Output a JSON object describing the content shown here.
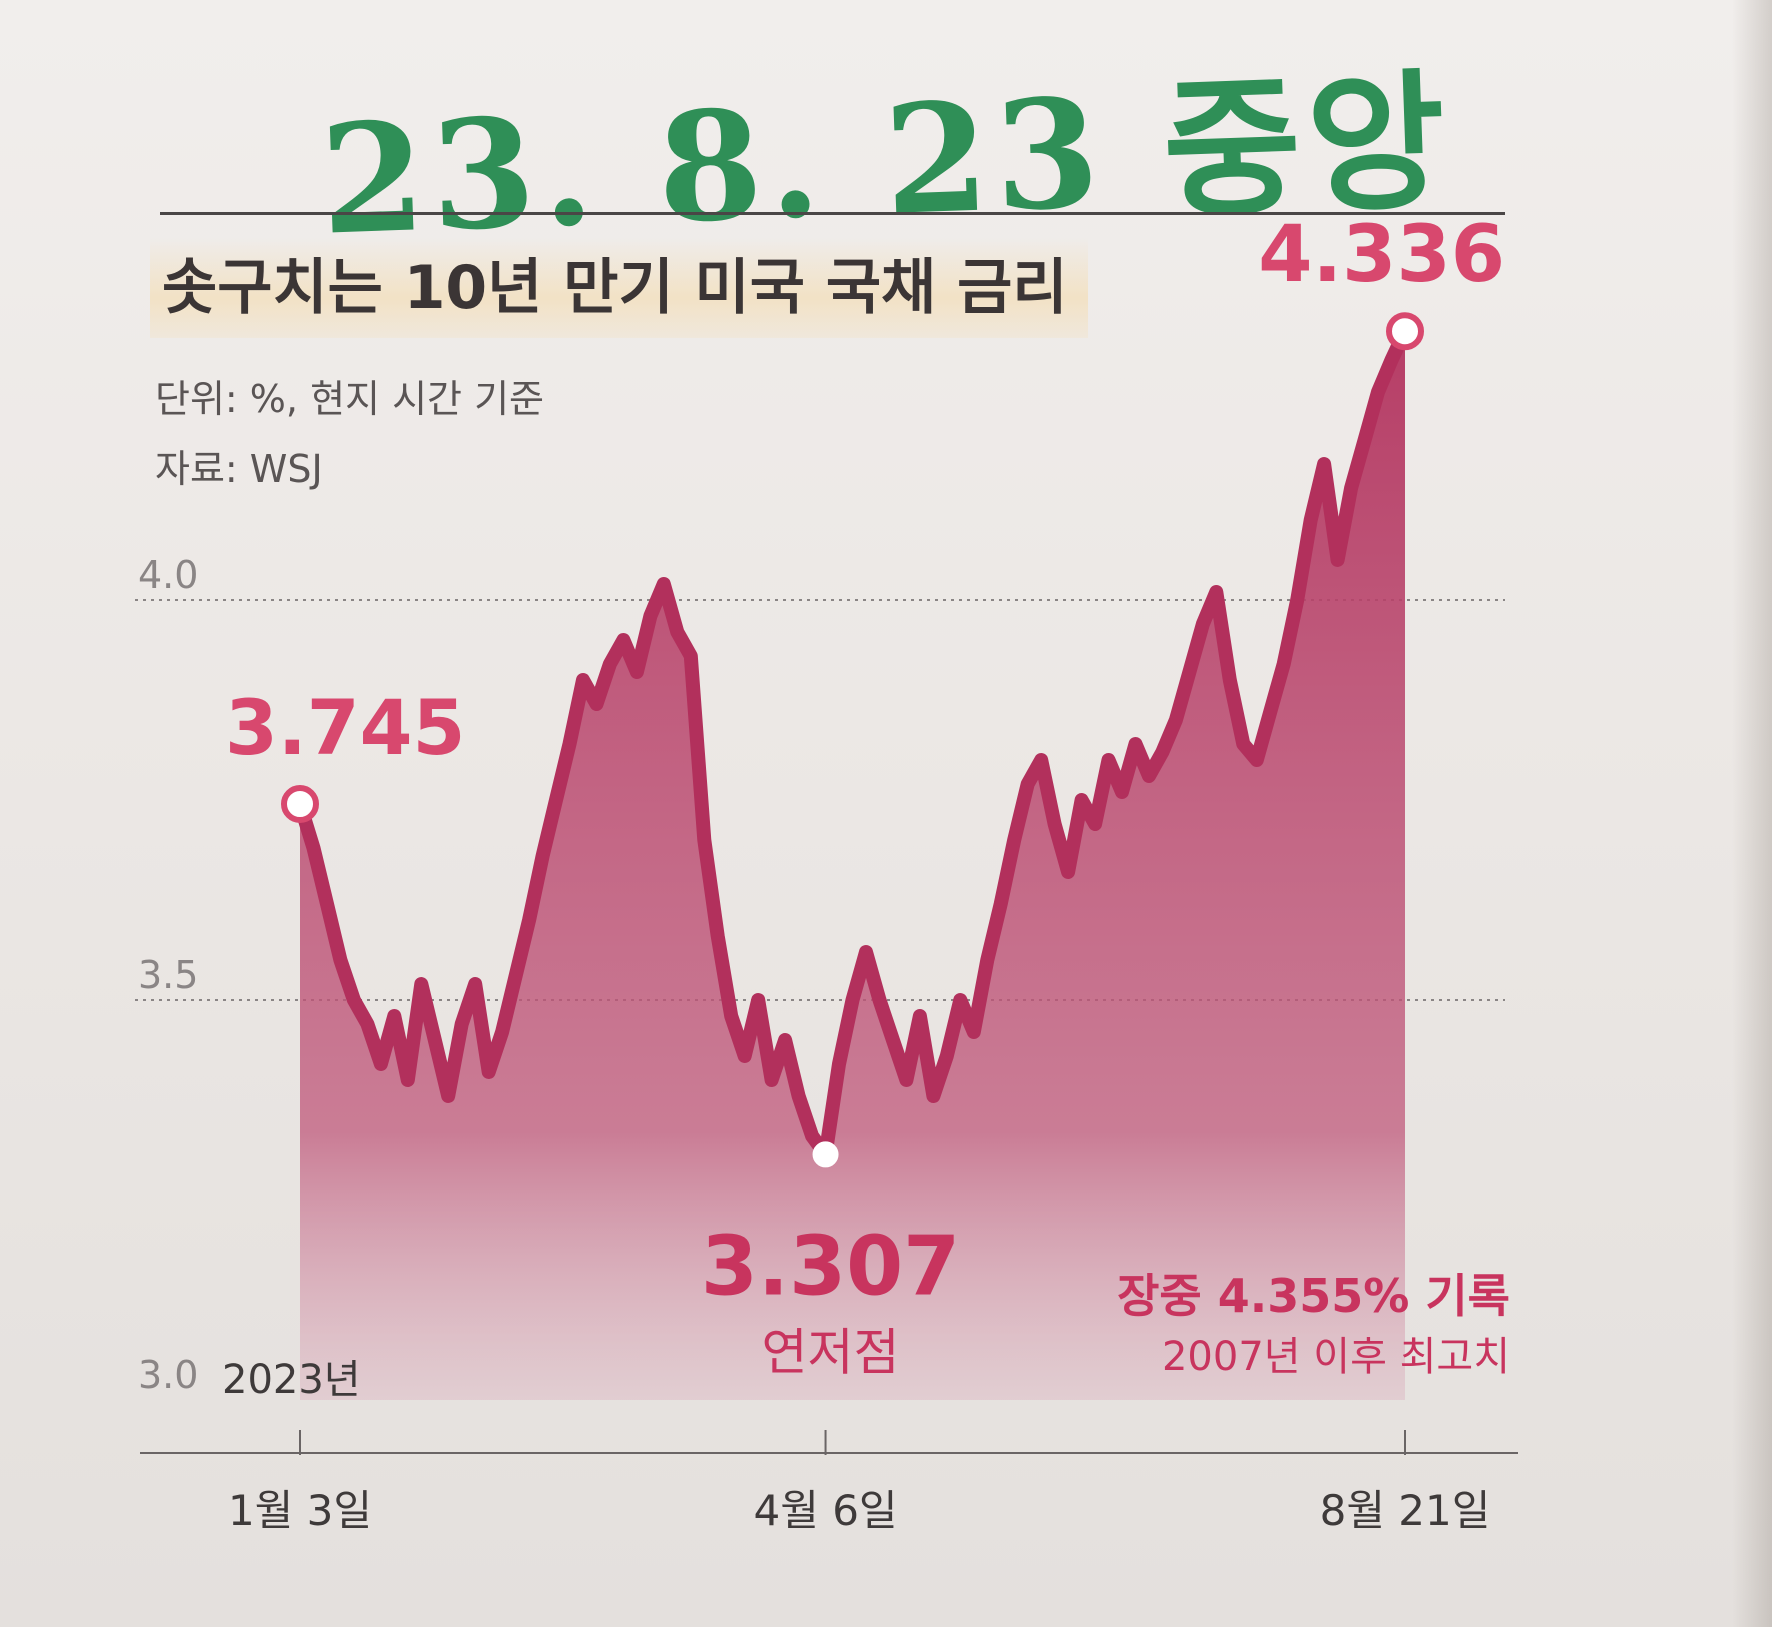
{
  "handwritten_note": "23. 8. 23 중앙",
  "title": "솟구치는 10년 만기 미국 국채 금리",
  "unit_note": "단위: %, 현지 시간 기준",
  "source": "자료: WSJ",
  "colors": {
    "series": "#b83a66",
    "highlight": "#d8486e"
  },
  "chart_data": {
    "type": "area",
    "title": "솟구치는 10년 만기 미국 국채 금리",
    "xlabel": "",
    "ylabel": "",
    "ylim": [
      3.0,
      4.4
    ],
    "y_ticks": [
      "3.0",
      "3.5",
      "4.0"
    ],
    "grid": true,
    "x_tick_labels": [
      "1월 3일",
      "4월 6일",
      "8월 21일"
    ],
    "year_label": "2023년",
    "series": [
      {
        "values": [
          3.745,
          3.69,
          3.62,
          3.55,
          3.5,
          3.47,
          3.42,
          3.48,
          3.4,
          3.52,
          3.45,
          3.38,
          3.47,
          3.52,
          3.41,
          3.46,
          3.53,
          3.6,
          3.68,
          3.75,
          3.82,
          3.9,
          3.87,
          3.92,
          3.95,
          3.91,
          3.98,
          4.02,
          3.96,
          3.93,
          3.7,
          3.58,
          3.48,
          3.43,
          3.5,
          3.4,
          3.45,
          3.38,
          3.33,
          3.307,
          3.42,
          3.5,
          3.56,
          3.5,
          3.45,
          3.4,
          3.48,
          3.38,
          3.43,
          3.5,
          3.46,
          3.55,
          3.62,
          3.7,
          3.77,
          3.8,
          3.72,
          3.66,
          3.75,
          3.72,
          3.8,
          3.76,
          3.82,
          3.78,
          3.81,
          3.85,
          3.91,
          3.97,
          4.01,
          3.9,
          3.82,
          3.8,
          3.86,
          3.92,
          4.0,
          4.1,
          4.17,
          4.05,
          4.14,
          4.2,
          4.26,
          4.3,
          4.336
        ],
        "annotations": [
          {
            "index": 0,
            "label": "3.745"
          },
          {
            "index": 39,
            "label": "3.307",
            "note": "연저점"
          },
          {
            "index": 82,
            "label": "4.336",
            "note": "장중 4.355% 기록",
            "note2": "2007년 이후 최고치"
          }
        ]
      }
    ]
  }
}
